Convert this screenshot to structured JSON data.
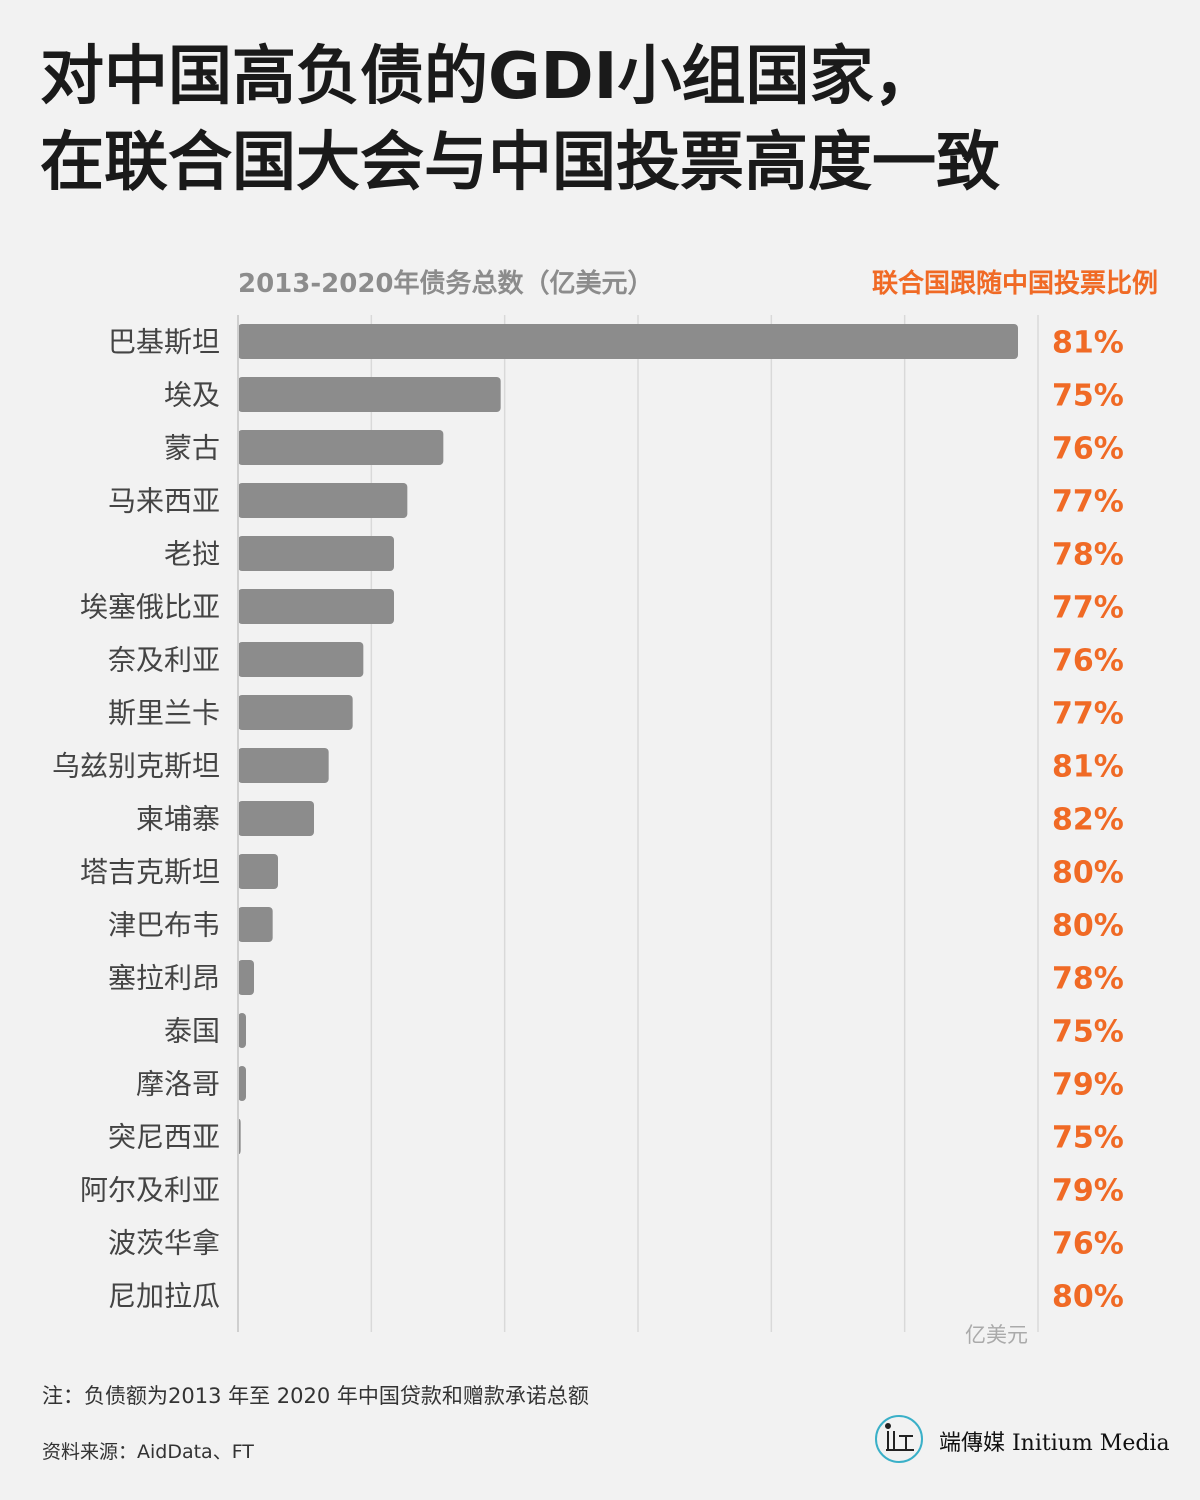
{
  "title": {
    "line1": "对中国高负债的GDI小组国家，",
    "line2": "在联合国大会与中国投票高度一致"
  },
  "chart_data": {
    "type": "bar",
    "orientation": "horizontal",
    "title": "2013-2020年债务总数（亿美元）",
    "right_column_title": "联合国跟随中国投票比例",
    "xunit": "亿美元",
    "xlim": [
      0,
      600
    ],
    "xticks": [
      100,
      200,
      300,
      400,
      500,
      600
    ],
    "grid": true,
    "categories": [
      "巴基斯坦",
      "埃及",
      "蒙古",
      "马来西亚",
      "老挝",
      "埃塞俄比亚",
      "奈及利亚",
      "斯里兰卡",
      "乌兹别克斯坦",
      "柬埔寨",
      "塔吉克斯坦",
      "津巴布韦",
      "塞拉利昂",
      "泰国",
      "摩洛哥",
      "突尼西亚",
      "阿尔及利亚",
      "波茨华拿",
      "尼加拉瓜"
    ],
    "values": [
      585,
      197,
      154,
      127,
      117,
      117,
      94,
      86,
      68,
      57,
      30,
      26,
      12,
      6,
      6,
      2,
      0,
      0,
      0
    ],
    "vote_share": [
      "81%",
      "75%",
      "76%",
      "77%",
      "78%",
      "77%",
      "76%",
      "77%",
      "81%",
      "82%",
      "80%",
      "80%",
      "78%",
      "75%",
      "79%",
      "75%",
      "79%",
      "76%",
      "80%"
    ],
    "colors": {
      "bar": "#8c8c8c",
      "percent": "#f06a25",
      "header": "#8c8c8c",
      "grid": "#d9d9d9",
      "label": "#444444"
    }
  },
  "footer": {
    "note": "注：负债额为2013 年至 2020 年中国贷款和赠款承诺总额",
    "source": "资料来源：AidData、FT",
    "brand": "端傳媒 Initium Media"
  }
}
